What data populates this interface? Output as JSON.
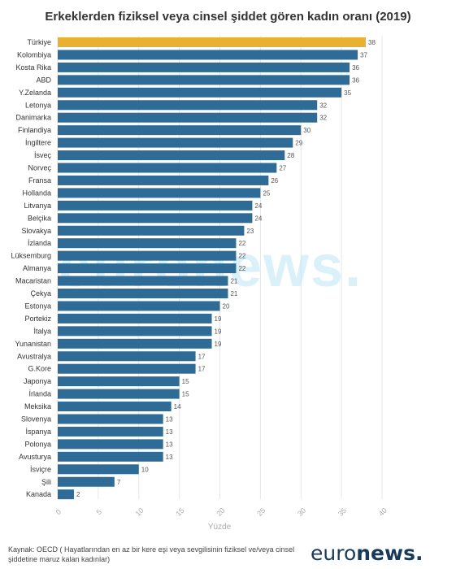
{
  "chart_data": {
    "type": "bar",
    "orientation": "horizontal",
    "title": "Erkeklerden fiziksel veya cinsel şiddet gören kadın oranı (2019)",
    "xlabel": "Yüzde",
    "ylabel": "",
    "xlim": [
      0,
      40
    ],
    "xticks": [
      0,
      5,
      10,
      15,
      20,
      25,
      30,
      35,
      40
    ],
    "grid": true,
    "categories": [
      "Türkiye",
      "Kolombiya",
      "Kosta Rika",
      "ABD",
      "Y.Zelanda",
      "Letonya",
      "Danimarka",
      "Finlandiya",
      "İngiltere",
      "İsveç",
      "Norveç",
      "Fransa",
      "Hollanda",
      "Litvanya",
      "Belçika",
      "Slovakya",
      "İzlanda",
      "Lüksemburg",
      "Almanya",
      "Macaristan",
      "Çekya",
      "Estonya",
      "Portekiz",
      "İtalya",
      "Yunanistan",
      "Avustralya",
      "G.Kore",
      "Japonya",
      "İrlanda",
      "Meksika",
      "Slovenya",
      "İspanya",
      "Polonya",
      "Avusturya",
      "İsviçre",
      "Şili",
      "Kanada"
    ],
    "values": [
      38,
      37,
      36,
      36,
      35,
      32,
      32,
      30,
      29,
      28,
      27,
      26,
      25,
      24,
      24,
      23,
      22,
      22,
      22,
      21,
      21,
      20,
      19,
      19,
      19,
      17,
      17,
      15,
      15,
      14,
      13,
      13,
      13,
      13,
      10,
      7,
      2
    ],
    "highlight_index": 0,
    "colors": {
      "bar": "#2e6b97",
      "highlight": "#e8b130",
      "grid": "#e6e6e6"
    }
  },
  "source_text": "Kaynak: OECD ( Hayatlarından en az bir kere eşi veya sevgilisinin fiziksel ve/veya cinsel şiddetine maruz kalan kadınlar)",
  "watermark": "euronews.",
  "logo": {
    "part1": "euro",
    "part2": "news."
  }
}
